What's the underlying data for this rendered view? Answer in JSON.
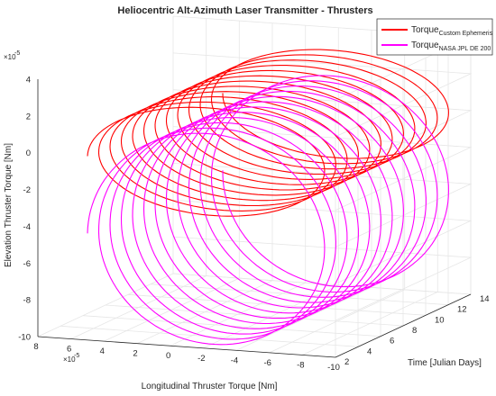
{
  "chart_data": {
    "type": "line",
    "title": "Heliocentric Alt-Azimuth Laser Transmitter - Thrusters",
    "xlabel": "Longitudinal Thruster Torque [Nm]",
    "ylabel": "Time [Julian Days]",
    "zlabel": "Elevation Thruster Torque [Nm]",
    "x_exponent": "×10",
    "x_exponent_power": "-5",
    "z_exponent": "×10",
    "z_exponent_power": "-5",
    "xlim": [
      -10,
      8
    ],
    "ylim": [
      2,
      14
    ],
    "zlim": [
      -10,
      4
    ],
    "x_ticks": [
      8,
      6,
      4,
      2,
      0,
      -2,
      -4,
      -6,
      -8,
      -10
    ],
    "y_ticks": [
      2,
      4,
      6,
      8,
      10,
      12,
      14
    ],
    "z_ticks": [
      4,
      2,
      0,
      -2,
      -4,
      -6,
      -8,
      -10
    ],
    "grid": true,
    "legend_placement": "top-right",
    "series": [
      {
        "name": "Torque",
        "subscript": "Custom Ephemeris",
        "color": "#ff0000",
        "x_center": -2,
        "x_amplitude": 7,
        "z_center": 0,
        "z_amplitude": 3,
        "y_range": [
          2,
          14
        ],
        "cycles": 12
      },
      {
        "name": "Torque",
        "subscript": "NASA JPL DE 200",
        "color": "#ff00ff",
        "x_center": -2,
        "x_amplitude": 7,
        "z_center": -4.2,
        "z_amplitude": 5.8,
        "y_range": [
          2,
          14
        ],
        "cycles": 12
      }
    ]
  }
}
